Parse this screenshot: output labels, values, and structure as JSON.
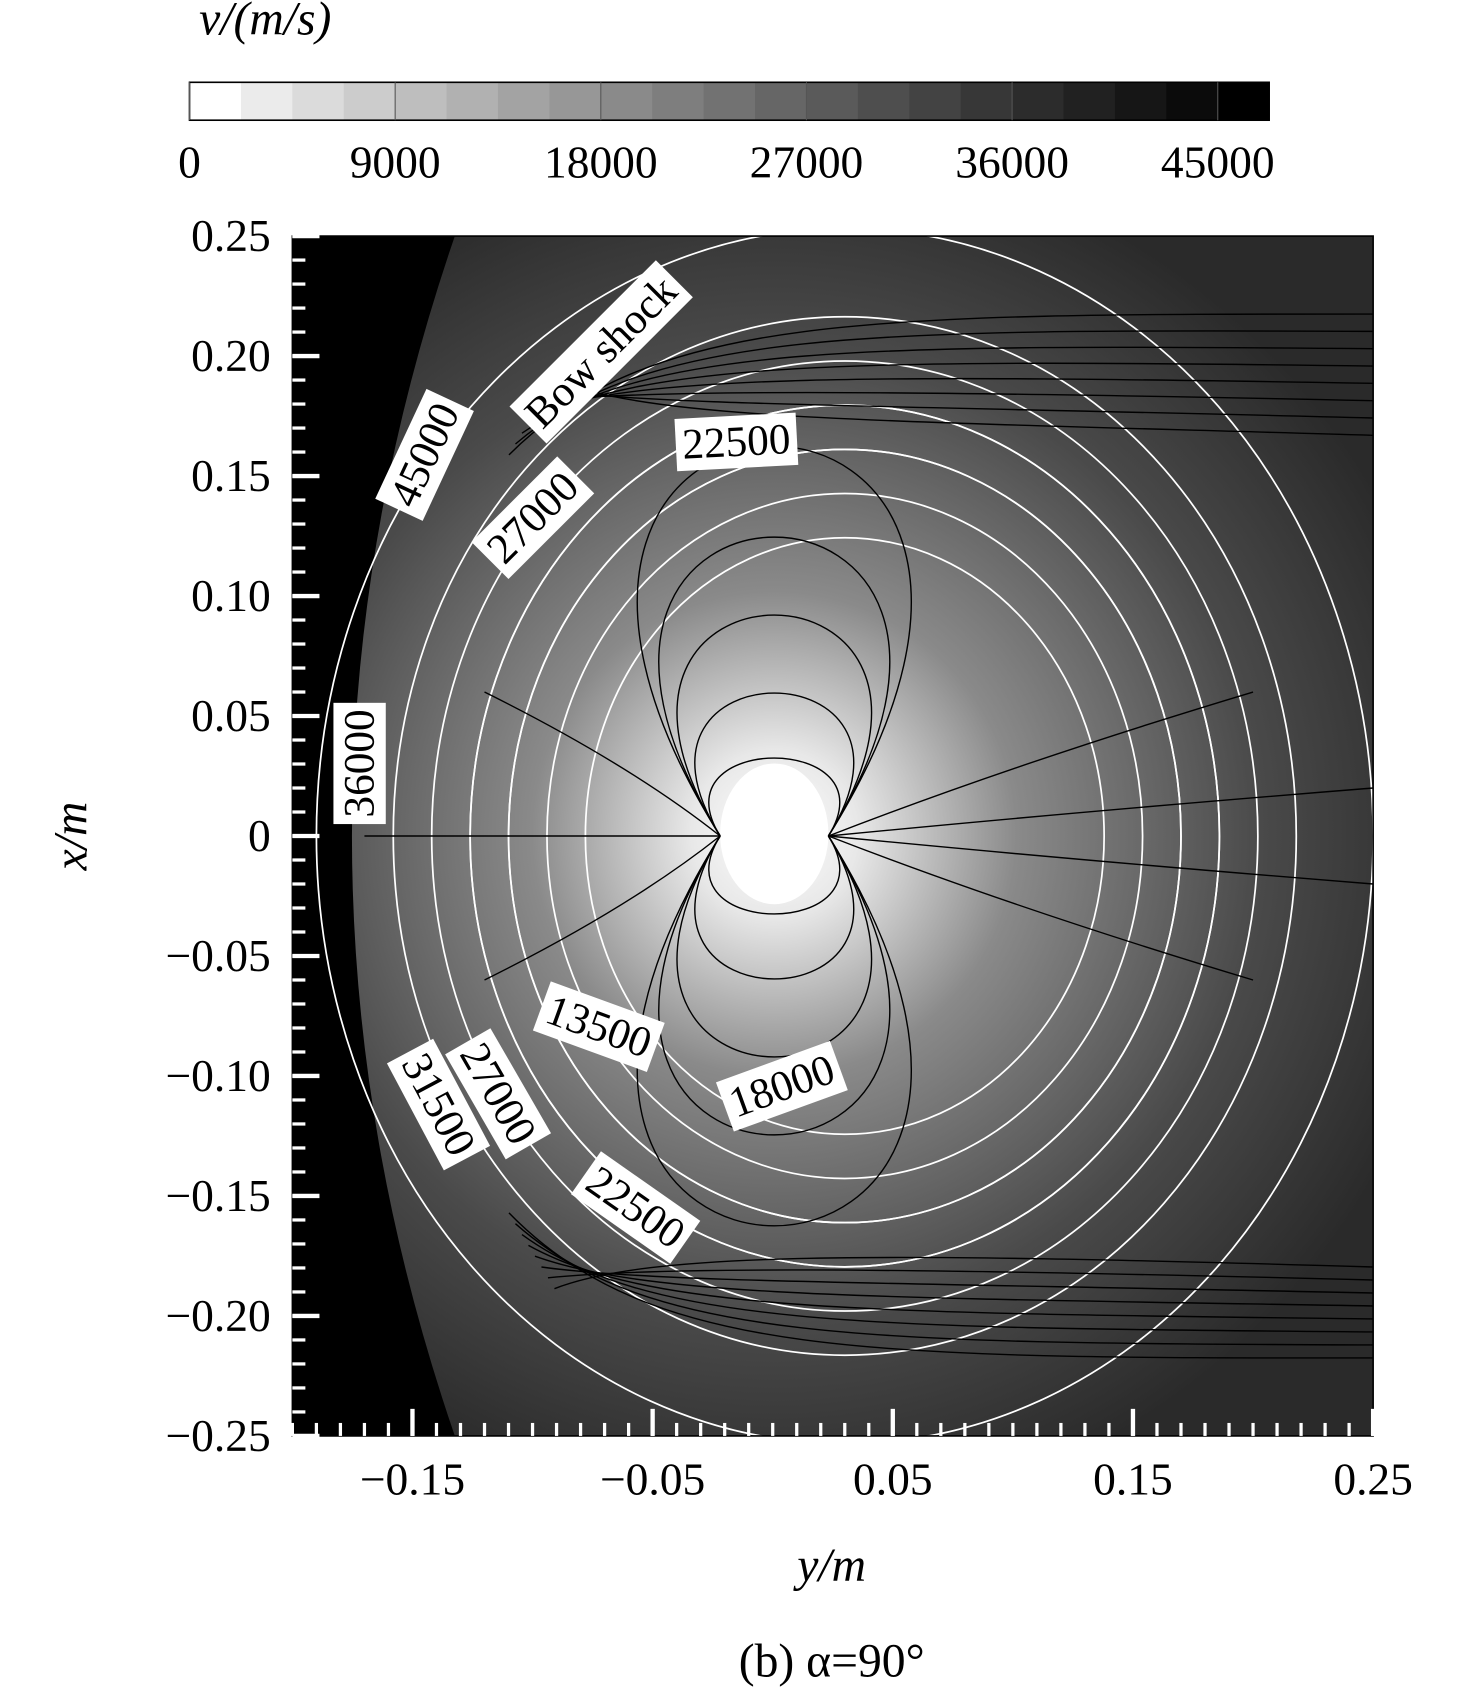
{
  "chart_data": {
    "type": "contour",
    "title": "(b) α=90°",
    "xlabel": "y/m",
    "ylabel": "x/m",
    "xlim": [
      -0.2,
      0.25
    ],
    "ylim": [
      -0.25,
      0.25
    ],
    "xticks": [
      {
        "value": -0.15,
        "label": "−0.15"
      },
      {
        "value": -0.05,
        "label": "−0.05"
      },
      0.05,
      0.15,
      0.25
    ],
    "yticks": [
      0.25,
      {
        "value": 0.2,
        "label": "0.20"
      },
      0.15,
      {
        "value": 0.1,
        "label": "0.10"
      },
      0.05,
      0,
      {
        "value": -0.05,
        "label": "−0.05"
      },
      {
        "value": -0.1,
        "label": "−0.10"
      },
      {
        "value": -0.15,
        "label": "−0.15"
      },
      {
        "value": -0.2,
        "label": "−0.20"
      },
      {
        "value": -0.25,
        "label": "−0.25"
      }
    ],
    "colorbar": {
      "title": "v/(m/s)",
      "lim": [
        0,
        47250
      ],
      "ticks": [
        0,
        9000,
        18000,
        27000,
        36000,
        45000
      ]
    },
    "contour_labels": [
      45000,
      27000,
      22500,
      36000,
      13500,
      18000,
      27000,
      31500,
      22500
    ],
    "annotation": "Bow shock"
  }
}
